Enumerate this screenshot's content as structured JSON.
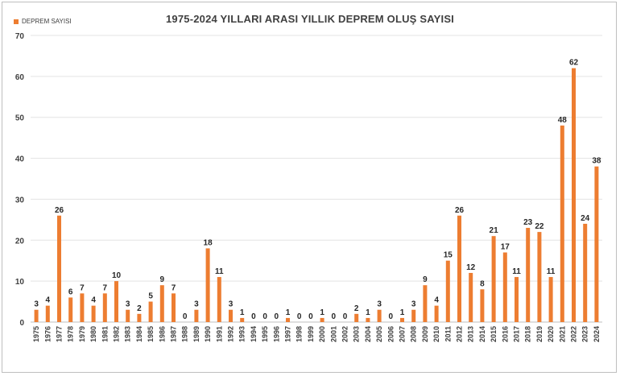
{
  "chart_data": {
    "type": "bar",
    "title": "1975-2024 YILLARI ARASI YILLIK DEPREM OLUŞ SAYISI",
    "series_name": "DEPREM SAYISI",
    "color": "#ed7d31",
    "categories": [
      "1975",
      "1976",
      "1977",
      "1978",
      "1979",
      "1980",
      "1981",
      "1982",
      "1983",
      "1984",
      "1985",
      "1986",
      "1987",
      "1988",
      "1989",
      "1990",
      "1991",
      "1992",
      "1993",
      "1994",
      "1995",
      "1996",
      "1997",
      "1998",
      "1999",
      "2000",
      "2001",
      "2002",
      "2003",
      "2004",
      "2005",
      "2006",
      "2007",
      "2008",
      "2009",
      "2010",
      "2011",
      "2012",
      "2013",
      "2014",
      "2015",
      "2016",
      "2017",
      "2018",
      "2019",
      "2020",
      "2021",
      "2022",
      "2023",
      "2024"
    ],
    "values": [
      3,
      4,
      26,
      6,
      7,
      4,
      7,
      10,
      3,
      2,
      5,
      9,
      7,
      0,
      3,
      18,
      11,
      3,
      1,
      0,
      0,
      0,
      1,
      0,
      0,
      1,
      0,
      0,
      2,
      1,
      3,
      0,
      1,
      3,
      9,
      4,
      15,
      26,
      12,
      8,
      21,
      17,
      11,
      23,
      22,
      11,
      48,
      62,
      24,
      38
    ],
    "yticks": [
      "0",
      "10",
      "20",
      "30",
      "40",
      "50",
      "60",
      "70"
    ],
    "ylim": [
      0,
      70
    ],
    "xlabel": "",
    "ylabel": "",
    "legend_position": "top-left"
  }
}
